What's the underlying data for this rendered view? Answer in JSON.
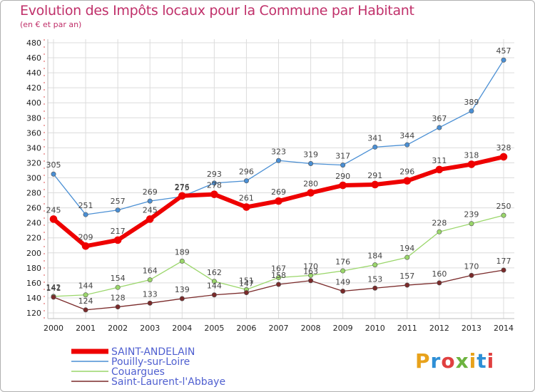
{
  "title": "Evolution des Impôts locaux pour la Commune par Habitant",
  "subtitle": "(en € et par an)",
  "logo": {
    "text": "Proxiti",
    "colors": [
      "#e8a21b",
      "#2e8fd6",
      "#e04040",
      "#6db33f"
    ]
  },
  "chart_data": {
    "type": "line",
    "x": [
      2000,
      2001,
      2002,
      2003,
      2004,
      2005,
      2006,
      2007,
      2008,
      2009,
      2010,
      2011,
      2012,
      2013,
      2014
    ],
    "ylim": [
      120,
      480
    ],
    "yticks": [
      120,
      140,
      160,
      180,
      200,
      220,
      240,
      260,
      280,
      300,
      320,
      340,
      360,
      380,
      400,
      420,
      440,
      460,
      480
    ],
    "grid": true,
    "legend_position": "bottom-left",
    "series": [
      {
        "name": "Pouilly-sur-Loire",
        "color": "#4a8fd4",
        "width": 1.3,
        "values": [
          305,
          251,
          257,
          269,
          275,
          293,
          296,
          323,
          319,
          317,
          341,
          344,
          367,
          389,
          457
        ]
      },
      {
        "name": "Couargues",
        "color": "#9ad66a",
        "width": 1.3,
        "values": [
          142,
          144,
          154,
          164,
          189,
          162,
          151,
          167,
          170,
          176,
          184,
          194,
          228,
          239,
          250
        ]
      },
      {
        "name": "Saint-Laurent-l'Abbaye",
        "color": "#7a2a2a",
        "width": 1.3,
        "values": [
          141,
          124,
          128,
          133,
          139,
          144,
          147,
          158,
          163,
          149,
          153,
          157,
          160,
          170,
          177
        ]
      },
      {
        "name": "SAINT-ANDELAIN",
        "color": "#ee0000",
        "width": 6,
        "values": [
          245,
          209,
          217,
          245,
          276,
          278,
          261,
          269,
          280,
          290,
          291,
          296,
          311,
          318,
          328
        ]
      }
    ],
    "legend_order": [
      "SAINT-ANDELAIN",
      "Pouilly-sur-Loire",
      "Couargues",
      "Saint-Laurent-l'Abbaye"
    ]
  }
}
